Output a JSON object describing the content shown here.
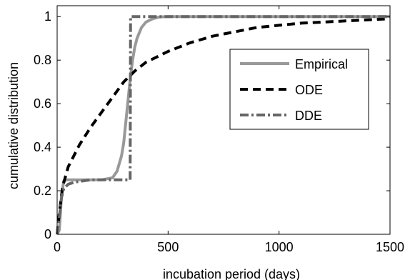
{
  "chart_data": {
    "type": "line",
    "xlabel": "incubation period (days)",
    "ylabel": "cumulative distribution",
    "xlim": [
      0,
      1500
    ],
    "ylim": [
      0,
      1.05
    ],
    "xticks": [
      0,
      500,
      1000,
      1500
    ],
    "yticks": [
      0,
      0.2,
      0.4,
      0.6,
      0.8,
      1
    ],
    "xtick_labels": [
      "0",
      "500",
      "1000",
      "1500"
    ],
    "ytick_labels": [
      "0",
      "0.2",
      "0.4",
      "0.6",
      "0.8",
      "1"
    ],
    "grid": false,
    "legend_position": "upper-right",
    "series": [
      {
        "name": "Empirical",
        "color": "#999999",
        "style": "solid",
        "x": [
          0,
          10,
          20,
          30,
          40,
          60,
          100,
          200,
          250,
          270,
          290,
          300,
          310,
          320,
          330,
          340,
          350,
          360,
          380,
          400,
          430,
          460,
          500,
          600,
          1000,
          1500
        ],
        "y": [
          0,
          0.02,
          0.18,
          0.245,
          0.25,
          0.25,
          0.25,
          0.25,
          0.26,
          0.29,
          0.36,
          0.42,
          0.52,
          0.62,
          0.72,
          0.8,
          0.86,
          0.9,
          0.95,
          0.975,
          0.99,
          0.998,
          1,
          1,
          1,
          1
        ]
      },
      {
        "name": "ODE",
        "color": "#000000",
        "style": "dashed",
        "x": [
          0,
          10,
          25,
          50,
          75,
          100,
          150,
          200,
          250,
          300,
          350,
          400,
          500,
          600,
          700,
          800,
          900,
          1000,
          1100,
          1200,
          1300,
          1400,
          1500
        ],
        "y": [
          0,
          0.1,
          0.22,
          0.31,
          0.36,
          0.41,
          0.49,
          0.56,
          0.63,
          0.7,
          0.75,
          0.79,
          0.84,
          0.88,
          0.91,
          0.93,
          0.95,
          0.96,
          0.97,
          0.975,
          0.98,
          0.985,
          0.99
        ]
      },
      {
        "name": "DDE",
        "color": "#666666",
        "style": "dashdot",
        "x": [
          0,
          10,
          20,
          30,
          50,
          80,
          150,
          250,
          320,
          329,
          331,
          400,
          600,
          1000,
          1500
        ],
        "y": [
          0,
          0.08,
          0.17,
          0.21,
          0.23,
          0.24,
          0.25,
          0.25,
          0.25,
          0.25,
          1,
          1,
          1,
          1,
          1
        ]
      }
    ]
  }
}
